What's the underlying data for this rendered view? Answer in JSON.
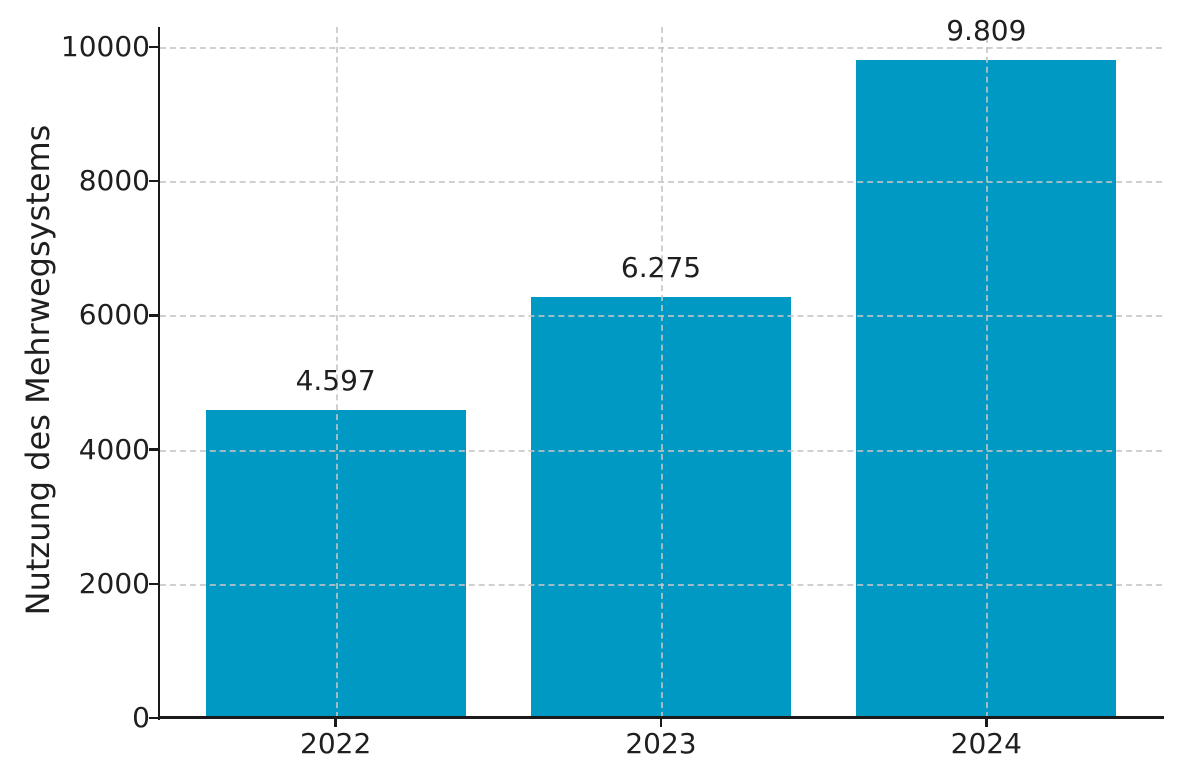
{
  "chart_data": {
    "type": "bar",
    "title": "",
    "xlabel": "",
    "ylabel": "Nutzung des Mehrwegsystems",
    "categories": [
      "2022",
      "2023",
      "2024"
    ],
    "values": [
      4597,
      6275,
      9809
    ],
    "value_labels": [
      "4.597",
      "6.275",
      "9.809"
    ],
    "yticks": [
      0,
      2000,
      4000,
      6000,
      8000,
      10000
    ],
    "ytick_labels": [
      "0",
      "2000",
      "4000",
      "6000",
      "8000",
      "10000"
    ],
    "ylim": [
      0,
      10300
    ],
    "xlim": [
      -0.54,
      2.54
    ],
    "bar_width": 0.8,
    "grid": true,
    "grid_style": "dashed",
    "grid_over_bars": true,
    "legend": null,
    "colors": {
      "bar": "#0099c4",
      "grid": "#c5c5c5",
      "axis": "#1a1a1a",
      "text": "#1f1f1f",
      "background": "#ffffff"
    }
  }
}
